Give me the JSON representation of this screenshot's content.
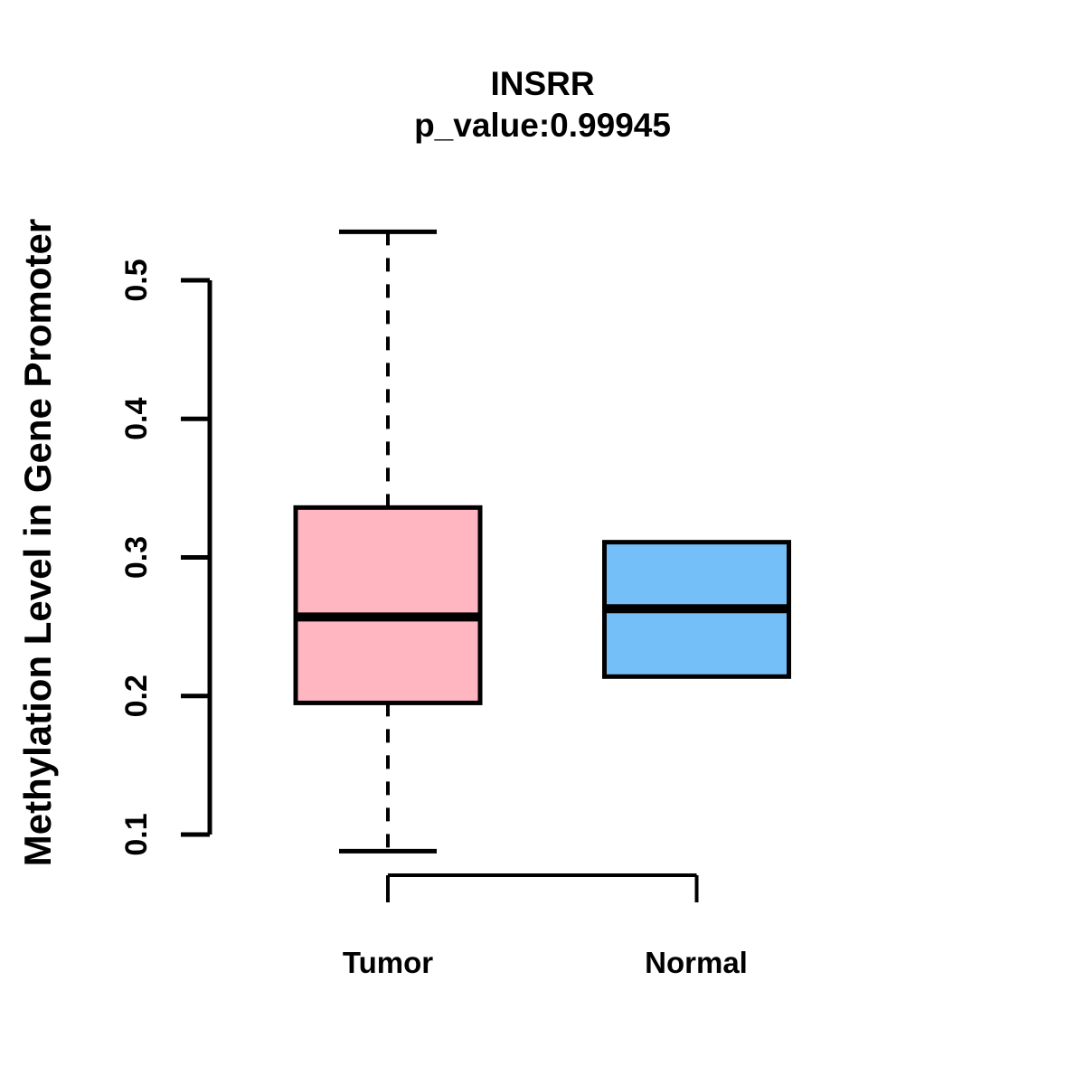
{
  "chart_data": {
    "type": "boxplot",
    "title": "INSRR",
    "subtitle": "p_value:0.99945",
    "ylabel": "Methylation Level in Gene Promoter",
    "xlabel": "",
    "categories": [
      "Tumor",
      "Normal"
    ],
    "yticks": [
      0.1,
      0.2,
      0.3,
      0.4,
      0.5
    ],
    "yticklabels": [
      "0.1",
      "0.2",
      "0.3",
      "0.4",
      "0.5"
    ],
    "ylim": [
      0.088,
      0.535
    ],
    "grid": false,
    "legend_position": "none",
    "whisker_style": "dashed",
    "axis_color": "#000000",
    "box_border_color": "#000000",
    "median_color": "#000000",
    "series": [
      {
        "name": "Tumor",
        "fill": "#FFB6C1",
        "whisker_low": 0.088,
        "q1": 0.195,
        "median": 0.257,
        "q3": 0.336,
        "whisker_high": 0.535
      },
      {
        "name": "Normal",
        "fill": "#74BFF7",
        "whisker_low": 0.214,
        "q1": 0.214,
        "median": 0.263,
        "q3": 0.311,
        "whisker_high": 0.311
      }
    ]
  }
}
